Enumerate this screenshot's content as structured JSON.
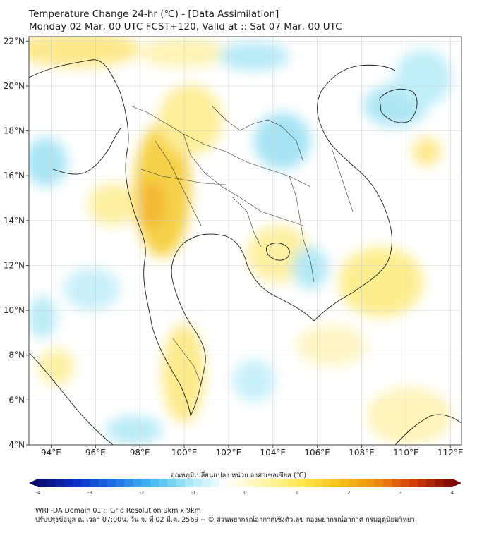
{
  "header": {
    "title_line1": "Temperature Change 24-hr (℃) - [Data Assimilation]",
    "title_line2": "Monday 02 Mar, 00 UTC FCST+120, Valid at :: Sat 07 Mar, 00 UTC"
  },
  "map": {
    "lon_ticks": [
      "94°E",
      "96°E",
      "98°E",
      "100°E",
      "102°E",
      "104°E",
      "106°E",
      "108°E",
      "110°E",
      "112°E"
    ],
    "lat_ticks": [
      "22°N",
      "20°N",
      "18°N",
      "16°N",
      "14°N",
      "12°N",
      "10°N",
      "8°N",
      "6°N",
      "4°N"
    ],
    "lon_range": [
      93,
      112.5
    ],
    "lat_range": [
      4,
      22.2
    ]
  },
  "colorbar": {
    "title": "อุณหภูมิเปลี่ยนแปลง หน่วย องศาเซลเซียส (℃)",
    "ticks": [
      "-4",
      "-3",
      "-2",
      "-1",
      "0",
      "1",
      "2",
      "3",
      "4"
    ],
    "range": [
      -4,
      4
    ],
    "colors": [
      "#0b0b6e",
      "#0a2fc4",
      "#1f6fe6",
      "#3fb9f0",
      "#a6e8f5",
      "#ffffff",
      "#fdf6a8",
      "#fde64a",
      "#f6c21a",
      "#f08a0e",
      "#d23a06",
      "#7a0505"
    ]
  },
  "footer": {
    "line1": "WRF-DA Domain 01 :: Grid Resolution 9km x 9km",
    "line2": "ปรับปรุงข้อมูล ณ เวลา 07:00น. วัน จ. ที่ 02 มี.ค. 2569 -- © ส่วนพยากรณ์อากาศเชิงตัวเลข กองพยากรณ์อากาศ กรมอุตุนิยมวิทยา"
  }
}
